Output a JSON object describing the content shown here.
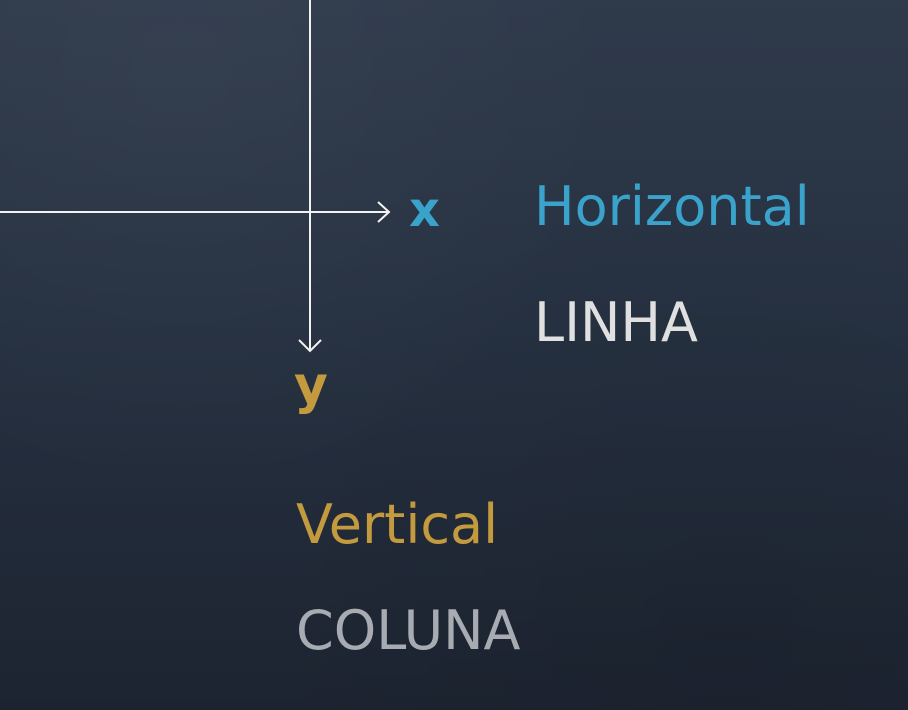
{
  "colors": {
    "horizontal_accent": "#3aa3cc",
    "vertical_accent": "#c39a3e",
    "primary_text": "#e0e0e0",
    "secondary_text": "#a8acb2",
    "axis_line": "#f2f2f2"
  },
  "axes": {
    "x_label": "x",
    "y_label": "y"
  },
  "horizontal": {
    "title": "Horizontal",
    "term": "LINHA"
  },
  "vertical": {
    "title": "Vertical",
    "term": "COLUNA"
  }
}
